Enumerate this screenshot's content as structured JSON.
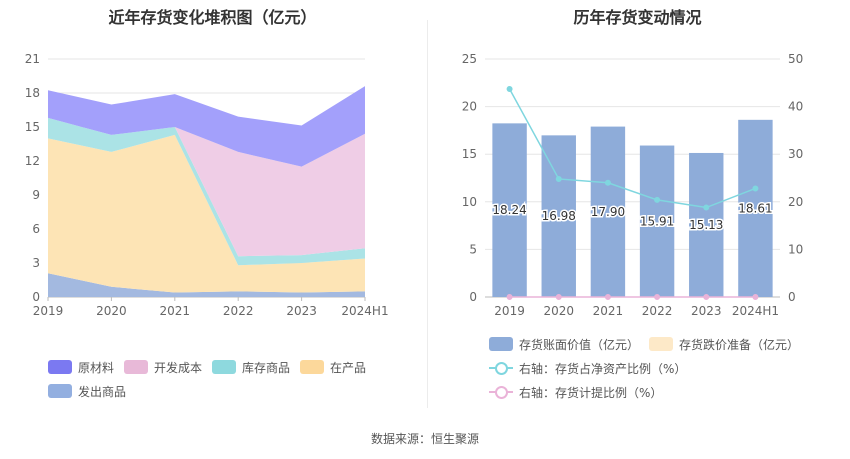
{
  "left": {
    "title": "近年存货变化堆积图（亿元）",
    "chart_data": {
      "type": "area",
      "stacked": true,
      "categories": [
        "2019",
        "2020",
        "2021",
        "2022",
        "2023",
        "2024H1"
      ],
      "ylim": [
        0,
        21
      ],
      "yticks": [
        0,
        3,
        6,
        9,
        12,
        15,
        18,
        21
      ],
      "grid": true,
      "legend_position": "bottom",
      "series": [
        {
          "name": "发出商品",
          "color": "#a3b9e0",
          "values": [
            2.1,
            0.9,
            0.4,
            0.5,
            0.4,
            0.5
          ]
        },
        {
          "name": "在产品",
          "color": "#fde4b5",
          "values": [
            11.9,
            11.9,
            13.9,
            2.3,
            2.6,
            2.9
          ]
        },
        {
          "name": "库存商品",
          "color": "#abe3e6",
          "values": [
            1.8,
            1.5,
            0.7,
            0.8,
            0.7,
            0.9
          ]
        },
        {
          "name": "开发成本",
          "color": "#efcde6",
          "values": [
            0,
            0,
            0,
            9.2,
            7.8,
            10.1
          ]
        },
        {
          "name": "原材料",
          "color": "#a3a0fb",
          "values": [
            2.44,
            2.68,
            2.9,
            3.11,
            3.63,
            4.21
          ]
        }
      ],
      "legend_order": [
        "原材料",
        "开发成本",
        "库存商品",
        "在产品",
        "发出商品"
      ],
      "legend_colors": {
        "原材料": "#7b79f1",
        "开发成本": "#e8b9d8",
        "库存商品": "#8ed9de",
        "在产品": "#fcd89b",
        "发出商品": "#93afe0"
      }
    }
  },
  "right": {
    "title": "历年存货变动情况",
    "chart_data": {
      "type": "bar",
      "categories": [
        "2019",
        "2020",
        "2021",
        "2022",
        "2023",
        "2024H1"
      ],
      "ylim_left": [
        0,
        25
      ],
      "yticks_left": [
        0,
        5,
        10,
        15,
        20,
        25
      ],
      "ylim_right": [
        0,
        50
      ],
      "yticks_right": [
        0,
        10,
        20,
        30,
        40,
        50
      ],
      "grid": true,
      "legend_position": "bottom",
      "series": [
        {
          "name": "存货账面价值（亿元）",
          "type": "bar",
          "axis": "left",
          "color": "#8eacd9",
          "values": [
            18.24,
            16.98,
            17.9,
            15.91,
            15.13,
            18.61
          ],
          "labels": [
            "18.24",
            "16.98",
            "17.90",
            "15.91",
            "15.13",
            "18.61"
          ]
        },
        {
          "name": "存货跌价准备（亿元）",
          "type": "bar",
          "axis": "left",
          "color": "#fde9c8",
          "values": [
            0,
            0,
            0,
            0,
            0,
            0
          ]
        },
        {
          "name": "右轴：存货占净资产比例（%）",
          "type": "line",
          "axis": "right",
          "color": "#7fd6df",
          "values": [
            43.7,
            24.8,
            24.0,
            20.4,
            18.8,
            22.8
          ]
        },
        {
          "name": "右轴：存货计提比例（%）",
          "type": "line",
          "axis": "right",
          "color": "#eab3d8",
          "values": [
            0,
            0,
            0,
            0,
            0,
            0
          ]
        }
      ]
    }
  },
  "source": "数据来源：恒生聚源"
}
